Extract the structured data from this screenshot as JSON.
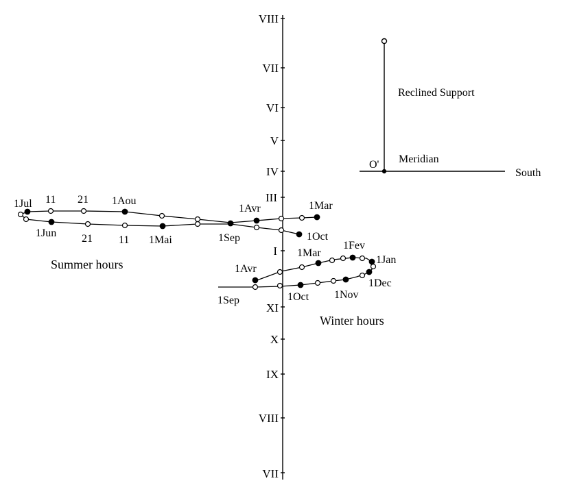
{
  "colors": {
    "background": "#ffffff",
    "ink": "#000000"
  },
  "inset": {
    "label_reclined": "Reclined Support",
    "label_meridian": "Meridian",
    "label_south": "South",
    "label_origin": "O'"
  },
  "axis_hours": [
    "VIII",
    "VII",
    "VI",
    "V",
    "IV",
    "III",
    "I",
    "XI",
    "X",
    "IX",
    "VIII",
    "VII"
  ],
  "summer": {
    "title": "Summer hours",
    "labels_top": [
      "1Jul",
      "11",
      "21",
      "1Aou",
      "1Avr",
      "1Mar"
    ],
    "labels_bottom": [
      "1Jun",
      "21",
      "11",
      "1Mai",
      "1Sep",
      "1Oct"
    ]
  },
  "winter": {
    "title": "Winter hours",
    "labels": [
      "1Mar",
      "1Fev",
      "1Jan",
      "1Avr",
      "1Dec",
      "1Nov",
      "1Oct",
      "1Sep"
    ]
  }
}
